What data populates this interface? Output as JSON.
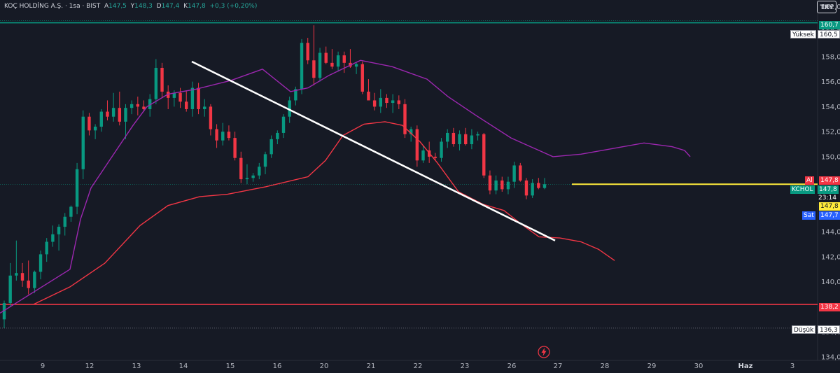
{
  "header": {
    "symbol_name": "KOÇ HOLDİNG A.Ş. · 1sa · BIST",
    "open_key": "A",
    "open_val": "147,5",
    "high_key": "Y",
    "high_val": "148,3",
    "low_key": "D",
    "low_val": "147,4",
    "close_key": "K",
    "close_val": "147,8",
    "change": "+0,3 (+0,20%)"
  },
  "currency_button": "TRY",
  "price_tags": {
    "top_level": "160,7",
    "high_label": "Yüksek",
    "high_value": "160,5",
    "ask_label": "Al",
    "ask_value": "147,8",
    "ticker": "KCHOL",
    "ticker_price": "147,8",
    "countdown": "23:14",
    "yellow_value": "147,8",
    "bid_label": "Sat",
    "bid_value": "147,7",
    "support_level": "138,2",
    "low_label": "Düşük",
    "low_value": "136,3"
  },
  "colors": {
    "background": "#161a25",
    "up_candle": "#089981",
    "down_candle": "#f23645",
    "ma_purple": "#9c27b0",
    "ma_red": "#f23645",
    "trendline": "#ffffff",
    "yellow_line": "#ffeb3b",
    "top_line": "#089981",
    "support_line": "#f23645"
  },
  "chart_data": {
    "type": "candlestick",
    "ylim": [
      134,
      162
    ],
    "y_ticks": [
      "134,0",
      "136,0",
      "138,0",
      "140,0",
      "142,0",
      "144,0",
      "146,0",
      "148,0",
      "150,0",
      "152,0",
      "154,0",
      "156,0",
      "158,0",
      "160,0",
      "162,0"
    ],
    "x_labels": [
      {
        "label": "9",
        "bold": false
      },
      {
        "label": "12",
        "bold": false
      },
      {
        "label": "13",
        "bold": false
      },
      {
        "label": "14",
        "bold": false
      },
      {
        "label": "15",
        "bold": false
      },
      {
        "label": "16",
        "bold": false
      },
      {
        "label": "20",
        "bold": false
      },
      {
        "label": "21",
        "bold": false
      },
      {
        "label": "22",
        "bold": false
      },
      {
        "label": "23",
        "bold": false
      },
      {
        "label": "26",
        "bold": false
      },
      {
        "label": "27",
        "bold": false
      },
      {
        "label": "28",
        "bold": false
      },
      {
        "label": "29",
        "bold": false
      },
      {
        "label": "30",
        "bold": false
      },
      {
        "label": "Haz",
        "bold": true
      },
      {
        "label": "3",
        "bold": false
      }
    ],
    "horizontal_levels": [
      {
        "name": "top",
        "value": 160.7
      },
      {
        "name": "support",
        "value": 138.2
      },
      {
        "name": "low",
        "value": 136.3
      },
      {
        "name": "current",
        "value": 147.8
      }
    ],
    "candles": [
      [
        137.0,
        138.5,
        136.3,
        138.3
      ],
      [
        138.3,
        141.5,
        138.0,
        140.5
      ],
      [
        140.5,
        143.3,
        140.1,
        140.7
      ],
      [
        140.7,
        141.5,
        139.6,
        140.1
      ],
      [
        140.1,
        141.7,
        139.0,
        139.5
      ],
      [
        139.5,
        140.9,
        139.1,
        140.8
      ],
      [
        140.8,
        142.5,
        140.2,
        142.2
      ],
      [
        142.2,
        143.5,
        141.6,
        143.2
      ],
      [
        143.2,
        144.5,
        142.8,
        143.8
      ],
      [
        143.8,
        144.6,
        142.5,
        144.4
      ],
      [
        144.4,
        145.5,
        143.7,
        145.2
      ],
      [
        145.2,
        146.1,
        144.8,
        146.0
      ],
      [
        146.0,
        149.5,
        145.4,
        149.0
      ],
      [
        149.0,
        153.7,
        148.2,
        153.2
      ],
      [
        153.2,
        153.5,
        151.7,
        152.1
      ],
      [
        152.1,
        152.6,
        151.4,
        152.4
      ],
      [
        152.4,
        153.8,
        152.0,
        153.6
      ],
      [
        153.6,
        154.5,
        152.9,
        153.2
      ],
      [
        153.2,
        155.1,
        152.8,
        153.9
      ],
      [
        153.9,
        155.2,
        152.5,
        152.8
      ],
      [
        152.8,
        154.2,
        151.4,
        153.9
      ],
      [
        153.9,
        154.5,
        153.4,
        154.2
      ],
      [
        154.2,
        154.8,
        153.3,
        154.0
      ],
      [
        154.0,
        154.5,
        153.6,
        153.8
      ],
      [
        153.8,
        155.0,
        153.2,
        154.6
      ],
      [
        154.6,
        157.8,
        154.2,
        157.1
      ],
      [
        157.1,
        157.5,
        154.7,
        155.2
      ],
      [
        155.2,
        155.7,
        153.8,
        154.7
      ],
      [
        154.7,
        155.3,
        154.0,
        155.1
      ],
      [
        155.1,
        155.5,
        153.9,
        154.4
      ],
      [
        154.4,
        155.3,
        153.6,
        153.8
      ],
      [
        153.8,
        156.0,
        153.2,
        155.5
      ],
      [
        155.5,
        155.9,
        153.4,
        153.8
      ],
      [
        153.8,
        154.6,
        153.2,
        154.0
      ],
      [
        154.0,
        154.2,
        151.7,
        152.2
      ],
      [
        152.2,
        152.6,
        150.7,
        151.3
      ],
      [
        151.3,
        152.7,
        150.9,
        152.0
      ],
      [
        152.0,
        152.5,
        151.3,
        151.5
      ],
      [
        151.5,
        152.0,
        149.7,
        149.9
      ],
      [
        149.9,
        150.4,
        147.9,
        148.2
      ],
      [
        148.2,
        149.4,
        147.8,
        148.3
      ],
      [
        148.3,
        148.7,
        148.0,
        148.5
      ],
      [
        148.5,
        149.5,
        148.2,
        149.2
      ],
      [
        149.2,
        150.4,
        148.6,
        150.2
      ],
      [
        150.2,
        151.7,
        149.9,
        151.4
      ],
      [
        151.4,
        152.1,
        151.0,
        151.9
      ],
      [
        151.9,
        153.4,
        151.5,
        153.2
      ],
      [
        153.2,
        154.8,
        152.7,
        154.5
      ],
      [
        154.5,
        155.6,
        154.1,
        155.4
      ],
      [
        155.4,
        159.4,
        155.0,
        159.1
      ],
      [
        159.1,
        159.5,
        157.4,
        157.7
      ],
      [
        157.7,
        160.5,
        155.7,
        156.3
      ],
      [
        156.3,
        158.7,
        156.0,
        158.3
      ],
      [
        158.3,
        158.8,
        157.4,
        157.5
      ],
      [
        157.5,
        158.6,
        157.0,
        157.2
      ],
      [
        157.2,
        158.4,
        156.8,
        158.1
      ],
      [
        158.1,
        158.4,
        156.7,
        157.5
      ],
      [
        157.5,
        158.6,
        157.1,
        157.2
      ],
      [
        157.2,
        157.5,
        156.6,
        157.4
      ],
      [
        157.4,
        157.6,
        155.0,
        155.2
      ],
      [
        155.2,
        156.2,
        154.6,
        154.5
      ],
      [
        154.5,
        155.1,
        153.7,
        154.0
      ],
      [
        154.0,
        155.4,
        153.5,
        154.7
      ],
      [
        154.7,
        155.0,
        153.9,
        154.3
      ],
      [
        154.3,
        155.0,
        153.5,
        154.5
      ],
      [
        154.5,
        154.9,
        153.8,
        154.2
      ],
      [
        154.2,
        154.6,
        151.5,
        151.8
      ],
      [
        151.8,
        152.4,
        151.2,
        152.2
      ],
      [
        152.2,
        152.5,
        149.2,
        149.7
      ],
      [
        149.7,
        150.9,
        149.5,
        150.5
      ],
      [
        150.5,
        151.2,
        149.5,
        150.0
      ],
      [
        150.0,
        150.3,
        149.7,
        149.9
      ],
      [
        149.9,
        151.5,
        149.6,
        151.2
      ],
      [
        151.2,
        152.2,
        150.7,
        151.9
      ],
      [
        151.9,
        152.3,
        150.8,
        151.0
      ],
      [
        151.0,
        152.1,
        150.5,
        151.8
      ],
      [
        151.8,
        152.3,
        150.9,
        151.0
      ],
      [
        151.0,
        152.2,
        150.6,
        151.7
      ],
      [
        151.7,
        152.0,
        151.3,
        151.8
      ],
      [
        151.8,
        151.9,
        148.3,
        148.5
      ],
      [
        148.5,
        148.9,
        147.0,
        147.3
      ],
      [
        147.3,
        148.5,
        147.0,
        148.1
      ],
      [
        148.1,
        148.4,
        147.2,
        147.4
      ],
      [
        147.4,
        148.4,
        147.0,
        148.0
      ],
      [
        148.0,
        149.6,
        147.5,
        149.3
      ],
      [
        149.3,
        149.5,
        148.0,
        148.1
      ],
      [
        148.1,
        148.3,
        146.6,
        146.9
      ],
      [
        146.9,
        148.2,
        146.7,
        147.9
      ],
      [
        147.9,
        148.3,
        147.4,
        147.5
      ],
      [
        147.5,
        148.3,
        147.4,
        147.8
      ]
    ],
    "ma_purple": [
      [
        0,
        137.5
      ],
      [
        100,
        141.0
      ],
      [
        115,
        145.0
      ],
      [
        130,
        147.5
      ],
      [
        160,
        150.0
      ],
      [
        190,
        152.5
      ],
      [
        210,
        154.0
      ],
      [
        240,
        155.0
      ],
      [
        280,
        155.4
      ],
      [
        330,
        156.1
      ],
      [
        375,
        157.0
      ],
      [
        415,
        155.2
      ],
      [
        440,
        155.5
      ],
      [
        470,
        156.5
      ],
      [
        515,
        157.7
      ],
      [
        560,
        157.2
      ],
      [
        610,
        156.2
      ],
      [
        640,
        154.8
      ],
      [
        680,
        153.3
      ],
      [
        730,
        151.5
      ],
      [
        790,
        150.0
      ],
      [
        830,
        150.2
      ],
      [
        880,
        150.7
      ],
      [
        920,
        151.1
      ],
      [
        960,
        150.8
      ],
      [
        978,
        150.5
      ],
      [
        986,
        150.0
      ]
    ],
    "ma_red": [
      [
        48,
        138.2
      ],
      [
        100,
        139.6
      ],
      [
        150,
        141.5
      ],
      [
        200,
        144.5
      ],
      [
        240,
        146.1
      ],
      [
        285,
        146.8
      ],
      [
        325,
        147.0
      ],
      [
        380,
        147.6
      ],
      [
        440,
        148.4
      ],
      [
        465,
        149.7
      ],
      [
        490,
        151.7
      ],
      [
        520,
        152.6
      ],
      [
        550,
        152.8
      ],
      [
        575,
        152.5
      ],
      [
        600,
        151.2
      ],
      [
        625,
        149.5
      ],
      [
        655,
        147.2
      ],
      [
        690,
        146.2
      ],
      [
        720,
        145.7
      ],
      [
        745,
        144.6
      ],
      [
        770,
        143.6
      ],
      [
        800,
        143.5
      ],
      [
        830,
        143.2
      ],
      [
        855,
        142.6
      ],
      [
        878,
        141.7
      ]
    ],
    "trendline": [
      [
        274,
        157.6
      ],
      [
        793,
        143.3
      ]
    ]
  }
}
